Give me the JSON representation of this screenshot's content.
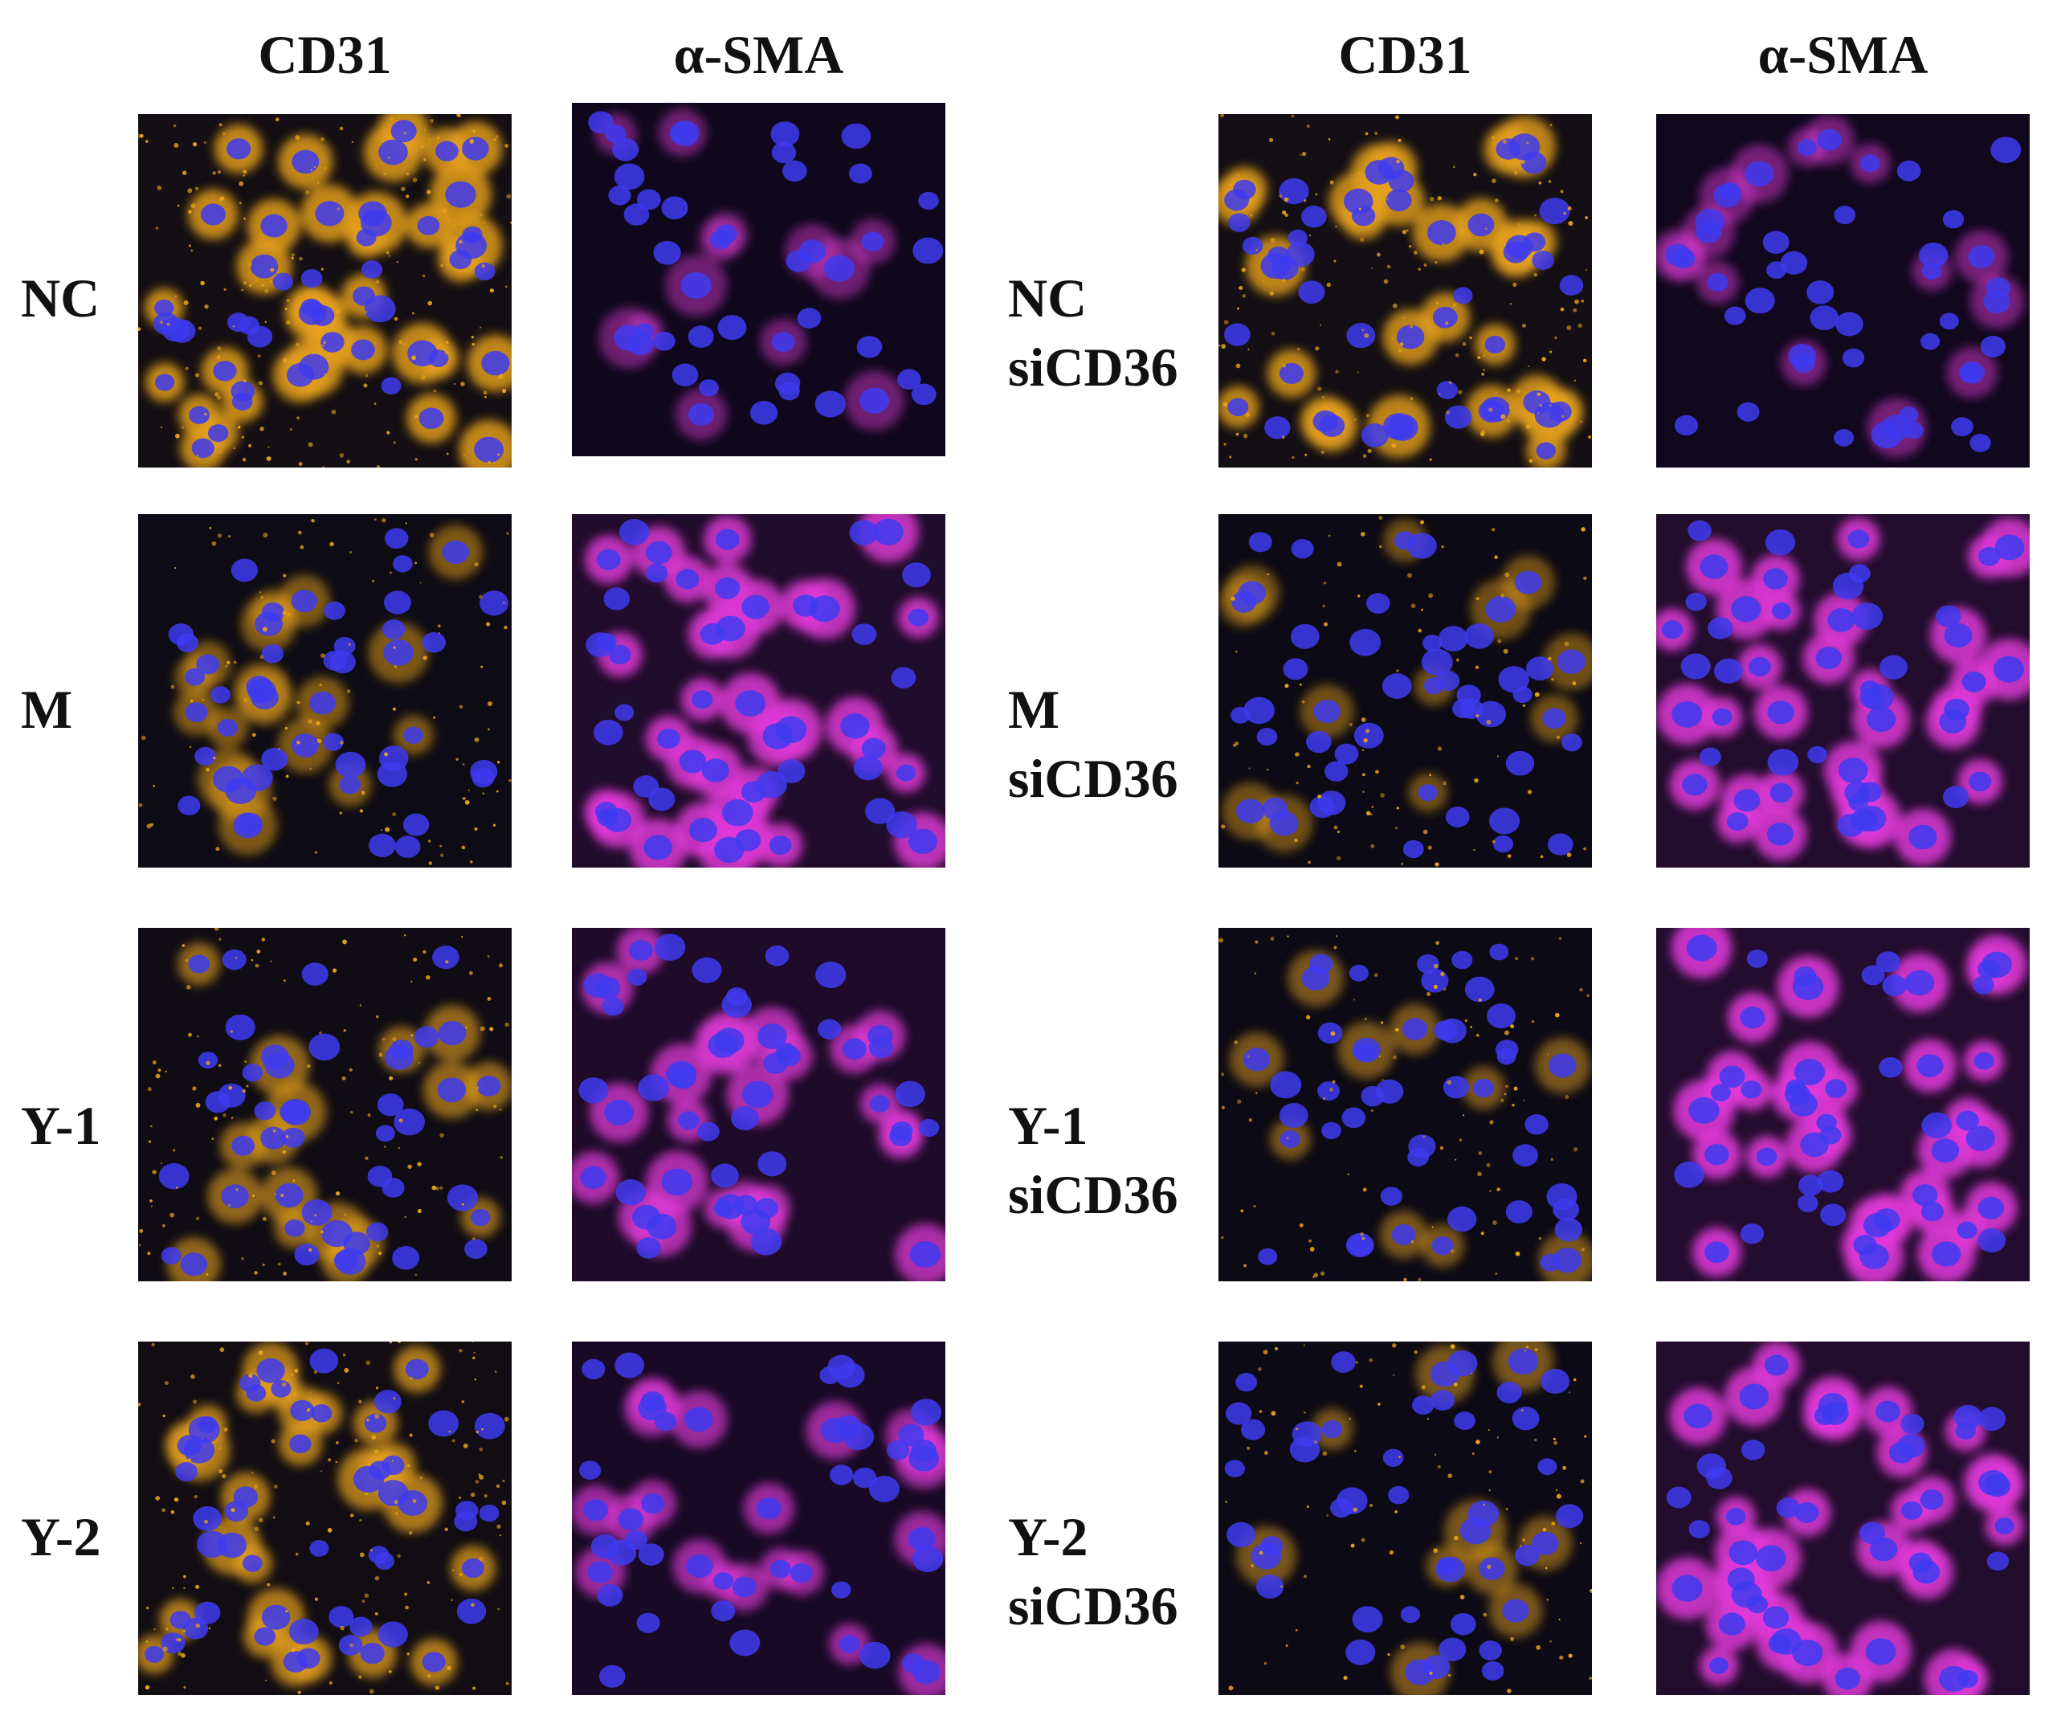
{
  "figure": {
    "left_group": {
      "headers": [
        "CD31",
        "α-SMA"
      ],
      "rows": [
        {
          "label_lines": [
            "NC"
          ],
          "cd31_intensity": 0.85,
          "sma_intensity": 0.2
        },
        {
          "label_lines": [
            "M"
          ],
          "cd31_intensity": 0.3,
          "sma_intensity": 0.85
        },
        {
          "label_lines": [
            "Y-1"
          ],
          "cd31_intensity": 0.45,
          "sma_intensity": 0.7
        },
        {
          "label_lines": [
            "Y-2"
          ],
          "cd31_intensity": 0.65,
          "sma_intensity": 0.55
        }
      ]
    },
    "right_group": {
      "headers": [
        "CD31",
        "α-SMA"
      ],
      "rows": [
        {
          "label_lines": [
            "NC",
            "siCD36"
          ],
          "cd31_intensity": 0.8,
          "sma_intensity": 0.25
        },
        {
          "label_lines": [
            "M",
            "siCD36"
          ],
          "cd31_intensity": 0.2,
          "sma_intensity": 0.9
        },
        {
          "label_lines": [
            "Y-1",
            "siCD36"
          ],
          "cd31_intensity": 0.25,
          "sma_intensity": 0.95
        },
        {
          "label_lines": [
            "Y-2",
            "siCD36"
          ],
          "cd31_intensity": 0.25,
          "sma_intensity": 0.9
        }
      ]
    },
    "colors": {
      "background": "#ffffff",
      "panel_bg": "#060614",
      "nucleus": "#3e3bf0",
      "cd31": "#e8a21c",
      "sma": "#e03ad8"
    },
    "stain_icons": [
      "microscopy-panel-cd31",
      "microscopy-panel-alpha-sma"
    ]
  }
}
